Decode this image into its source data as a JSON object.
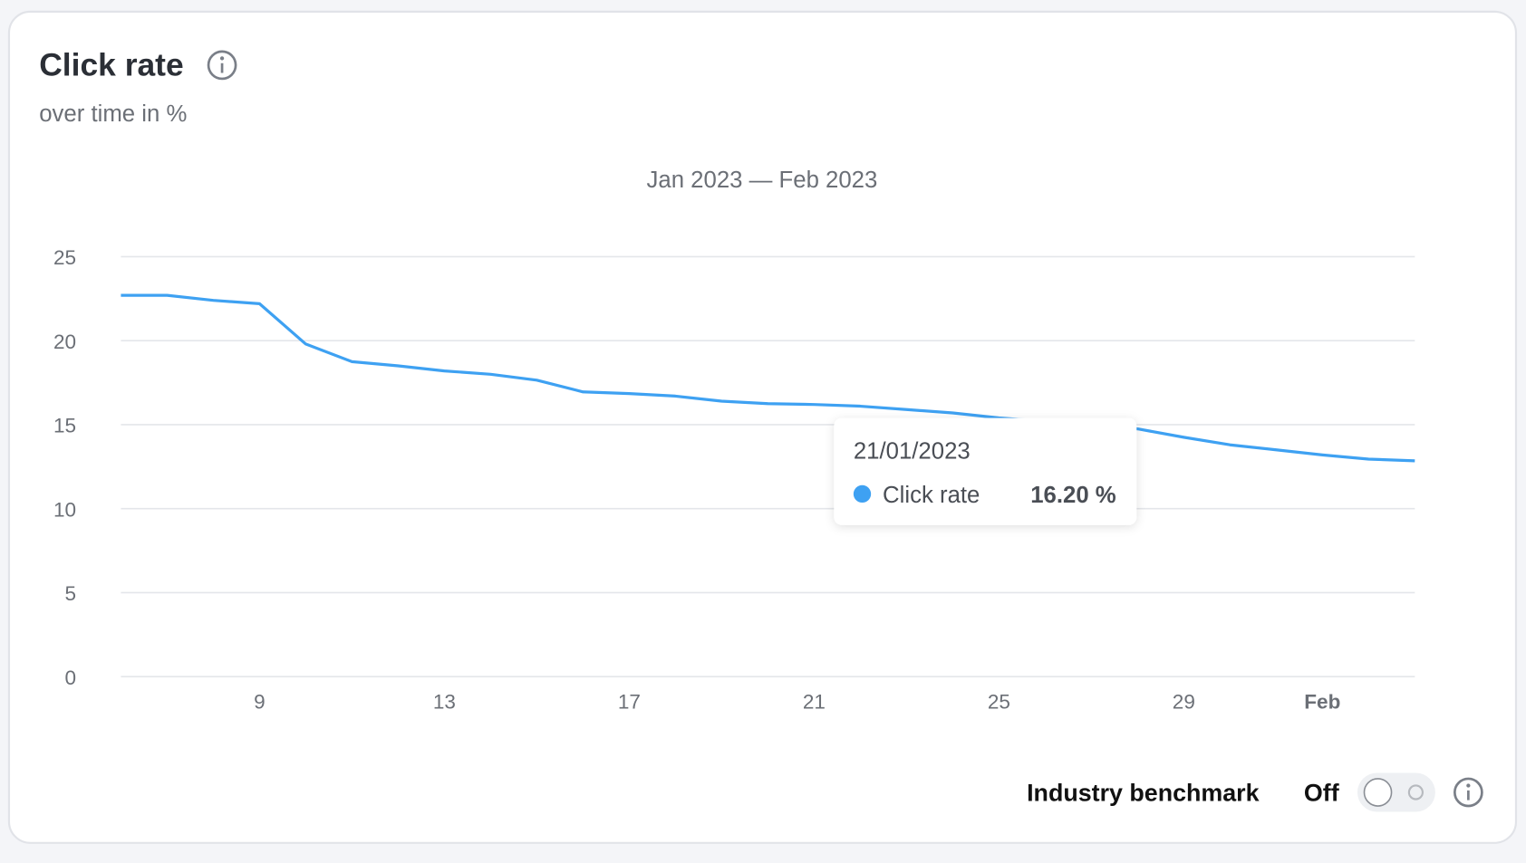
{
  "header": {
    "title": "Click rate",
    "subtitle": "over time in %"
  },
  "chart_data": {
    "type": "line",
    "title": "Jan 2023 — Feb 2023",
    "categories": [
      null,
      null,
      null,
      "9",
      null,
      null,
      null,
      "13",
      null,
      null,
      null,
      "17",
      null,
      null,
      null,
      "21",
      null,
      null,
      null,
      "25",
      null,
      null,
      null,
      "29",
      null,
      null,
      "Feb",
      null,
      null
    ],
    "series": [
      {
        "name": "Click rate",
        "color": "#3ea1f2",
        "values": [
          22.7,
          22.7,
          22.4,
          22.2,
          19.8,
          18.75,
          18.5,
          18.2,
          18.0,
          17.65,
          16.95,
          16.85,
          16.7,
          16.4,
          16.25,
          16.2,
          16.1,
          15.9,
          15.7,
          15.4,
          15.2,
          15.0,
          14.75,
          14.25,
          13.8,
          13.5,
          13.2,
          12.95,
          12.85
        ]
      }
    ],
    "ylim": [
      0,
      25
    ],
    "yticks": [
      0,
      5,
      10,
      15,
      20,
      25
    ],
    "grid": true,
    "tooltip": {
      "title": "21/01/2023",
      "value_label": "16.20 %"
    }
  },
  "footer": {
    "benchmark_label": "Industry benchmark",
    "toggle_state": "Off"
  }
}
